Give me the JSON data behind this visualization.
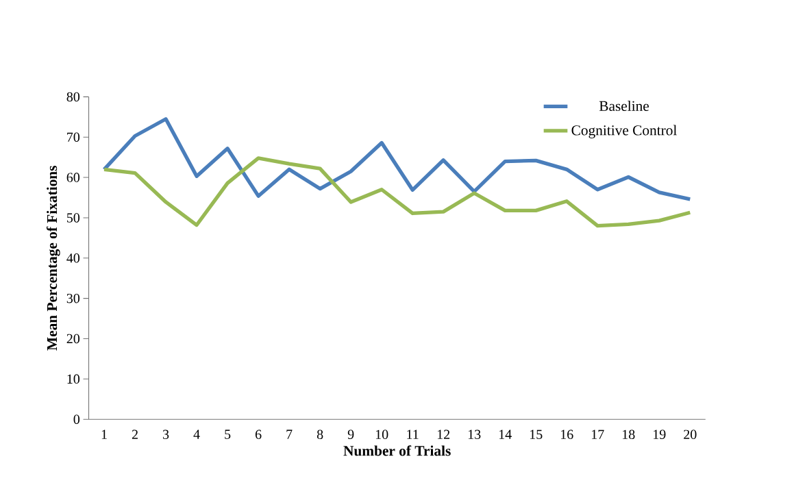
{
  "chart_data": {
    "type": "line",
    "xlabel": "Number of Trials",
    "ylabel": "Mean Percentage of Fixations",
    "categories": [
      "1",
      "2",
      "3",
      "4",
      "5",
      "6",
      "7",
      "8",
      "9",
      "10",
      "11",
      "12",
      "13",
      "14",
      "15",
      "16",
      "17",
      "18",
      "19",
      "20"
    ],
    "series": [
      {
        "name": "Baseline",
        "color": "#4a7ebb",
        "values": [
          62,
          70.3,
          74.5,
          60.3,
          67.2,
          55.4,
          62,
          57.2,
          61.5,
          68.6,
          56.9,
          64.3,
          56.5,
          64,
          64.2,
          62,
          57,
          60.1,
          56.3,
          54.6
        ]
      },
      {
        "name": "Cognitive Control",
        "color": "#98b954",
        "values": [
          62,
          61.1,
          53.9,
          48.2,
          58.6,
          64.8,
          63.4,
          62.2,
          53.9,
          57,
          51.1,
          51.5,
          56.1,
          51.8,
          51.8,
          54.1,
          48,
          48.4,
          49.3,
          51.3
        ]
      }
    ],
    "ylim": [
      0,
      80
    ],
    "yticks": [
      0,
      10,
      20,
      30,
      40,
      50,
      60,
      70,
      80
    ],
    "grid": false,
    "legend": "top right",
    "marker": "none",
    "line_style": "solid"
  }
}
